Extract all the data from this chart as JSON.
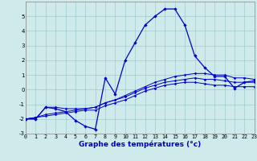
{
  "xlabel": "Graphe des températures (°c)",
  "bg_color": "#ceeaea",
  "grid_color": "#a0cccc",
  "line_color": "#0000cc",
  "hours": [
    0,
    1,
    2,
    3,
    4,
    5,
    6,
    7,
    8,
    9,
    10,
    11,
    12,
    13,
    14,
    15,
    16,
    17,
    18,
    19,
    20,
    21,
    22,
    23
  ],
  "temp_main": [
    -2.0,
    -2.0,
    -1.2,
    -1.3,
    -1.5,
    -2.1,
    -2.5,
    -2.7,
    0.8,
    -0.3,
    2.0,
    3.2,
    4.4,
    5.0,
    5.5,
    5.5,
    4.4,
    2.3,
    1.5,
    0.9,
    0.9,
    0.1,
    0.5,
    0.6
  ],
  "temp_line2": [
    -2.0,
    -2.0,
    -1.2,
    -1.2,
    -1.3,
    -1.3,
    -1.3,
    -1.2,
    -0.9,
    -0.7,
    -0.4,
    -0.1,
    0.2,
    0.5,
    0.7,
    0.9,
    1.0,
    1.1,
    1.1,
    1.0,
    1.0,
    0.8,
    0.8,
    0.7
  ],
  "temp_line3": [
    -2.0,
    -1.9,
    -1.7,
    -1.6,
    -1.5,
    -1.4,
    -1.3,
    -1.2,
    -0.9,
    -0.7,
    -0.5,
    -0.2,
    0.1,
    0.3,
    0.5,
    0.6,
    0.7,
    0.8,
    0.7,
    0.7,
    0.6,
    0.5,
    0.5,
    0.5
  ],
  "temp_line4": [
    -2.0,
    -1.9,
    -1.8,
    -1.7,
    -1.6,
    -1.5,
    -1.4,
    -1.4,
    -1.1,
    -0.9,
    -0.7,
    -0.4,
    -0.1,
    0.1,
    0.3,
    0.4,
    0.5,
    0.5,
    0.4,
    0.3,
    0.3,
    0.2,
    0.2,
    0.2
  ],
  "ylim": [
    -3.0,
    6.0
  ],
  "xlim": [
    0,
    23
  ],
  "yticks": [
    -3,
    -2,
    -1,
    0,
    1,
    2,
    3,
    4,
    5
  ],
  "xticks": [
    0,
    1,
    2,
    3,
    4,
    5,
    6,
    7,
    8,
    9,
    10,
    11,
    12,
    13,
    14,
    15,
    16,
    17,
    18,
    19,
    20,
    21,
    22,
    23
  ],
  "ylabel_fontsize": 5.0,
  "xlabel_fontsize": 6.5,
  "tick_fontsize": 4.8
}
